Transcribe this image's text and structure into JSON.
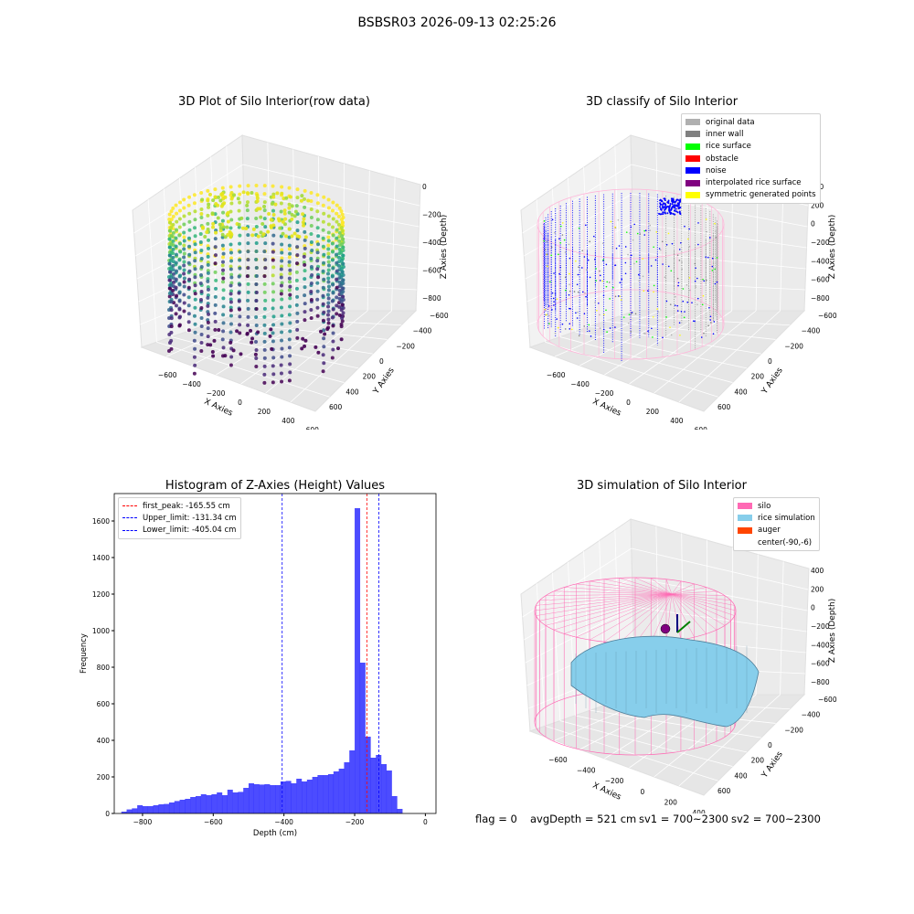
{
  "suptitle": "BSBSR03 2026-09-13 02:25:26",
  "chart_data": [
    {
      "type": "scatter",
      "title": "3D Plot of Silo Interior(row data)",
      "xlabel": "X Axies",
      "ylabel": "Y Axies",
      "zlabel": "Z Axies (Depth)",
      "x_ticks": [
        "−600",
        "−400",
        "−200",
        "0",
        "200",
        "400",
        "600"
      ],
      "y_ticks": [
        "−600",
        "−400",
        "−200",
        "0",
        "200",
        "400",
        "600"
      ],
      "z_ticks": [
        "0",
        "−200",
        "−400",
        "−600",
        "−800"
      ],
      "colormap": "viridis"
    },
    {
      "type": "scatter",
      "title": "3D classify of Silo Interior",
      "xlabel": "X Axies",
      "ylabel": "Y Axies",
      "zlabel": "Z Axies (Depth)",
      "x_ticks": [
        "−600",
        "−400",
        "−200",
        "0",
        "200",
        "400",
        "600"
      ],
      "y_ticks": [
        "−600",
        "−400",
        "−200",
        "0",
        "200",
        "400",
        "600"
      ],
      "z_ticks": [
        "400",
        "200",
        "0",
        "−200",
        "−400",
        "−600",
        "−800"
      ],
      "legend_placement": "top-right",
      "legend": [
        {
          "label": "original data",
          "color": "#b0b0b0"
        },
        {
          "label": "inner wall",
          "color": "#808080"
        },
        {
          "label": "rice surface",
          "color": "#00ff00"
        },
        {
          "label": "obstacle",
          "color": "#ff0000"
        },
        {
          "label": "noise",
          "color": "#0000ff"
        },
        {
          "label": "interpolated rice surface",
          "color": "#800080"
        },
        {
          "label": "symmetric generated points",
          "color": "#ffff00"
        }
      ]
    },
    {
      "type": "bar",
      "title": "Histogram of Z-Axies (Height) Values",
      "xlabel": "Depth (cm)",
      "ylabel": "Frequency",
      "xlim": [
        -880,
        30
      ],
      "ylim": [
        0,
        1750
      ],
      "x_ticks": [
        {
          "v": -800,
          "t": "−800"
        },
        {
          "v": -600,
          "t": "−600"
        },
        {
          "v": -400,
          "t": "−400"
        },
        {
          "v": -200,
          "t": "−200"
        },
        {
          "v": 0,
          "t": "0"
        }
      ],
      "y_ticks": [
        0,
        200,
        400,
        600,
        800,
        1000,
        1200,
        1400,
        1600
      ],
      "bin_edges_start": -860,
      "bin_width": 15,
      "values": [
        10,
        22,
        28,
        45,
        40,
        40,
        45,
        50,
        52,
        60,
        68,
        75,
        80,
        90,
        95,
        105,
        100,
        105,
        115,
        100,
        130,
        115,
        118,
        140,
        165,
        160,
        158,
        160,
        155,
        155,
        175,
        178,
        165,
        190,
        175,
        185,
        200,
        210,
        210,
        215,
        230,
        245,
        280,
        345,
        1670,
        825,
        420,
        305,
        320,
        270,
        235,
        95,
        25
      ],
      "bar_color": "#0000ff",
      "lines": [
        {
          "label": "first_peak: -165.55 cm",
          "x": -165.55,
          "color": "#ff0000"
        },
        {
          "label": "Upper_limit: -131.34 cm",
          "x": -131.34,
          "color": "#0000ff"
        },
        {
          "label": "Lower_limit: -405.04 cm",
          "x": -405.04,
          "color": "#0000ff"
        }
      ],
      "legend_placement": "top-left"
    },
    {
      "type": "surface",
      "title": "3D simulation of Silo Interior",
      "xlabel": "X Axies",
      "ylabel": "Y Axies",
      "zlabel": "Z Axies (Depth)",
      "x_ticks": [
        "−600",
        "−400",
        "−200",
        "0",
        "200",
        "400"
      ],
      "y_ticks": [
        "−600",
        "−400",
        "−200",
        "0",
        "200",
        "400",
        "600"
      ],
      "z_ticks": [
        "400",
        "200",
        "0",
        "−200",
        "−400",
        "−600",
        "−800"
      ],
      "legend_placement": "top-right",
      "legend": [
        {
          "label": "silo",
          "color": "#ff69b4"
        },
        {
          "label": "rice simulation",
          "color": "#87ceeb"
        },
        {
          "label": "auger",
          "color": "#ff4500"
        },
        {
          "label": "center(-90,-6)",
          "color": "#ffffff"
        }
      ]
    }
  ],
  "footer": {
    "flag": "flag = 0",
    "avgDepth": "avgDepth = 521 cm",
    "sv1": "sv1 = 700~2300",
    "sv2": "sv2 = 700~2300"
  }
}
